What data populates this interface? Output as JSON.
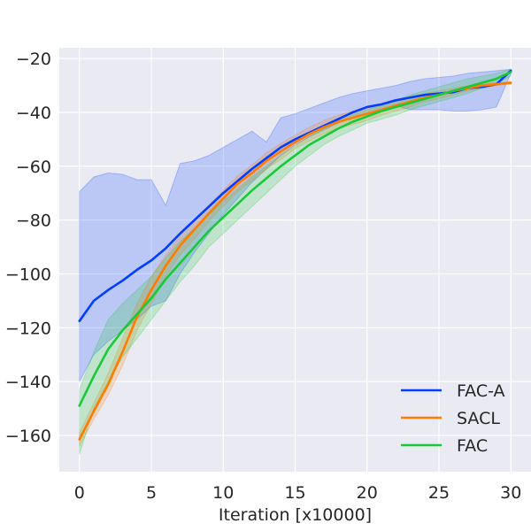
{
  "chart_data": {
    "type": "line",
    "title": "",
    "xlabel": "Iteration [x10000]",
    "ylabel": "",
    "xlim": [
      -1.4,
      31.4
    ],
    "ylim": [
      -173.5,
      -16
    ],
    "x_ticks": [
      0,
      5,
      10,
      15,
      20,
      25,
      30
    ],
    "y_ticks": [
      -160,
      -140,
      -120,
      -100,
      -80,
      -60,
      -40,
      -20
    ],
    "grid": true,
    "legend_position": "bottom-right",
    "colors": {
      "background": "#eaeaf2",
      "grid": "#ffffff",
      "text": "#262626"
    },
    "series": [
      {
        "name": "FAC-A",
        "color": "#023eff",
        "x": [
          0,
          1,
          2,
          3,
          4,
          5,
          6,
          7,
          8,
          9,
          10,
          11,
          12,
          13,
          14,
          15,
          16,
          17,
          18,
          19,
          20,
          21,
          22,
          23,
          24,
          25,
          26,
          27,
          28,
          29,
          30
        ],
        "values": [
          -117.5,
          -110,
          -106,
          -102.5,
          -98.5,
          -95,
          -90.5,
          -85,
          -80,
          -75,
          -70,
          -65.5,
          -61,
          -57,
          -53,
          -50,
          -47.5,
          -45,
          -42.5,
          -40,
          -38,
          -37,
          -35.5,
          -34.5,
          -33.5,
          -33,
          -32.5,
          -31,
          -30.5,
          -29.5,
          -24.5
        ],
        "band_upper": [
          -69.5,
          -64,
          -62.5,
          -63,
          -65,
          -65,
          -74.5,
          -59,
          -58,
          -56,
          -53,
          -50,
          -47,
          -51,
          -42,
          -40.5,
          -38.5,
          -36.5,
          -34.5,
          -33,
          -32,
          -31,
          -30,
          -28.5,
          -27.5,
          -27,
          -26.5,
          -25.5,
          -25,
          -24.5,
          -24
        ],
        "band_lower": [
          -140,
          -130,
          -125,
          -121,
          -117,
          -112,
          -110,
          -100,
          -92,
          -85,
          -78,
          -72,
          -66,
          -61,
          -56,
          -52,
          -49,
          -46.5,
          -44,
          -42,
          -40.5,
          -39,
          -37.5,
          -39,
          -39,
          -39,
          -39.5,
          -39.5,
          -39,
          -38,
          -25.5
        ]
      },
      {
        "name": "SACL",
        "color": "#ff7c00",
        "x": [
          0,
          1,
          2,
          3,
          4,
          5,
          6,
          7,
          8,
          9,
          10,
          11,
          12,
          13,
          14,
          15,
          16,
          17,
          18,
          19,
          20,
          21,
          22,
          23,
          24,
          25,
          26,
          27,
          28,
          29,
          30
        ],
        "values": [
          -161.5,
          -151,
          -141,
          -129,
          -116,
          -106,
          -97,
          -89.5,
          -83.5,
          -77.5,
          -72,
          -66.5,
          -62.5,
          -58,
          -54.5,
          -51,
          -48,
          -45.5,
          -43.5,
          -42,
          -40.5,
          -39,
          -37.5,
          -36,
          -34.5,
          -33.5,
          -32,
          -31,
          -30,
          -29.5,
          -29
        ],
        "band_upper": [
          -159,
          -148,
          -137,
          -124,
          -111,
          -101,
          -93,
          -86,
          -80,
          -74.5,
          -69,
          -63.5,
          -59.5,
          -55,
          -51.5,
          -48.5,
          -45.5,
          -43,
          -41,
          -39.5,
          -38,
          -37,
          -35.5,
          -34,
          -33,
          -32,
          -31,
          -30,
          -29.5,
          -29,
          -28.5
        ],
        "band_lower": [
          -164,
          -154,
          -145,
          -134,
          -121,
          -111,
          -101,
          -93,
          -87,
          -80.5,
          -75,
          -69.5,
          -65.5,
          -61,
          -57.5,
          -53.5,
          -50.5,
          -48,
          -46,
          -44.5,
          -43,
          -41,
          -39.5,
          -38,
          -36,
          -35,
          -33.5,
          -32,
          -31,
          -30,
          -29.5
        ]
      },
      {
        "name": "FAC",
        "color": "#1ac938",
        "x": [
          0,
          1,
          2,
          3,
          4,
          5,
          6,
          7,
          8,
          9,
          10,
          11,
          12,
          13,
          14,
          15,
          16,
          17,
          18,
          19,
          20,
          21,
          22,
          23,
          24,
          25,
          26,
          27,
          28,
          29,
          30
        ],
        "values": [
          -149,
          -138,
          -128,
          -121,
          -115,
          -109,
          -102,
          -96,
          -90,
          -84,
          -79,
          -74,
          -69,
          -64.5,
          -60,
          -56,
          -52,
          -49,
          -46,
          -43.5,
          -41.5,
          -39.5,
          -38,
          -36.5,
          -35,
          -33.5,
          -32,
          -30.5,
          -29,
          -27.5,
          -25
        ],
        "band_upper": [
          -143,
          -129,
          -117,
          -111,
          -106,
          -101,
          -94,
          -88,
          -83,
          -78,
          -73,
          -68.5,
          -64,
          -60,
          -56,
          -52.5,
          -49,
          -46,
          -43.5,
          -41,
          -39,
          -37.5,
          -35.5,
          -33.5,
          -32,
          -30.5,
          -29,
          -27.5,
          -26.5,
          -25.5,
          -24
        ],
        "band_lower": [
          -167,
          -150,
          -140,
          -131,
          -124,
          -117,
          -110,
          -103,
          -97,
          -90,
          -85,
          -80,
          -75,
          -70,
          -65,
          -60,
          -56,
          -52,
          -49,
          -46.5,
          -44,
          -42.5,
          -41,
          -39,
          -37.5,
          -36,
          -34.5,
          -33,
          -31,
          -29.5,
          -26.5
        ]
      }
    ]
  }
}
